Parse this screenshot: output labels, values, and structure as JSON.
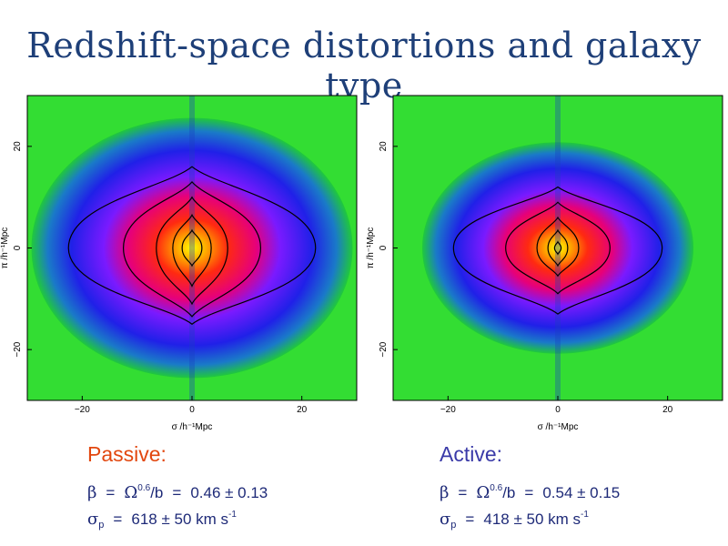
{
  "slide": {
    "title": "Redshift-space distortions and galaxy type"
  },
  "colors": {
    "title": "#1e3f78",
    "passive_label": "#e2470f",
    "active_label": "#3a3aa8",
    "formula_text": "#1e2a78"
  },
  "chart_data": [
    {
      "type": "heatmap",
      "title": "",
      "xlabel": "σ /h⁻¹Mpc",
      "ylabel": "π /h⁻¹Mpc",
      "xlim": [
        -30,
        30
      ],
      "ylim": [
        -30,
        30
      ],
      "xticks": [
        -20,
        0,
        20
      ],
      "yticks": [
        -20,
        0,
        20
      ],
      "xtick_labels": [
        "−20",
        "0",
        "20"
      ],
      "ytick_labels": [
        "−20",
        "0",
        "20"
      ],
      "colormap": "rainbow (green outer → blue → magenta → red → yellow core)",
      "contours": [
        {
          "sigma_half_width": 22.5,
          "pi_top": 16.0,
          "pi_bottom": 15.0,
          "pi_at_edge": 0
        },
        {
          "sigma_half_width": 12.5,
          "pi_top": 13.0,
          "pi_bottom": 13.5,
          "pi_at_edge": 0
        },
        {
          "sigma_half_width": 6.5,
          "pi_top": 10.0,
          "pi_bottom": 11.0,
          "pi_at_edge": 0
        },
        {
          "sigma_half_width": 3.5,
          "pi_top": 6.5,
          "pi_bottom": 7.5,
          "pi_at_edge": 0
        },
        {
          "sigma_half_width": 1.8,
          "pi_top": 3.5,
          "pi_bottom": 3.5,
          "pi_at_edge": 0
        }
      ]
    },
    {
      "type": "heatmap",
      "title": "",
      "xlabel": "σ /h⁻¹Mpc",
      "ylabel": "π /h⁻¹Mpc",
      "xlim": [
        -30,
        30
      ],
      "ylim": [
        -30,
        30
      ],
      "xticks": [
        -20,
        0,
        20
      ],
      "yticks": [
        -20,
        0,
        20
      ],
      "xtick_labels": [
        "−20",
        "0",
        "20"
      ],
      "ytick_labels": [
        "−20",
        "0",
        "20"
      ],
      "colormap": "rainbow (green outer → blue → magenta → red → yellow core)",
      "contours": [
        {
          "sigma_half_width": 19.0,
          "pi_top": 12.0,
          "pi_bottom": 13.0,
          "pi_at_edge": 0
        },
        {
          "sigma_half_width": 9.5,
          "pi_top": 9.0,
          "pi_bottom": 9.0,
          "pi_at_edge": 0
        },
        {
          "sigma_half_width": 3.8,
          "pi_top": 6.0,
          "pi_bottom": 5.5,
          "pi_at_edge": 0
        },
        {
          "sigma_half_width": 1.8,
          "pi_top": 3.5,
          "pi_bottom": 3.5,
          "pi_at_edge": 0
        },
        {
          "sigma_half_width": 0.6,
          "pi_top": 1.2,
          "pi_bottom": 1.2,
          "pi_at_edge": 0
        }
      ]
    }
  ],
  "passive": {
    "label": "Passive:",
    "beta_symbol": "β",
    "omega_symbol": "Ω",
    "omega_exp": "0.6",
    "beta_ratio": "/b",
    "beta_value": "0.46 ± 0.13",
    "sigma_symbol": "σ",
    "sigma_sub": "p",
    "sigma_value": "618 ± 50 km s",
    "sigma_unit_exp": "-1"
  },
  "active": {
    "label": "Active:",
    "beta_symbol": "β",
    "omega_symbol": "Ω",
    "omega_exp": "0.6",
    "beta_ratio": "/b",
    "beta_value": "0.54 ± 0.15",
    "sigma_symbol": "σ",
    "sigma_sub": "p",
    "sigma_value": "418 ± 50 km s",
    "sigma_unit_exp": "-1"
  }
}
